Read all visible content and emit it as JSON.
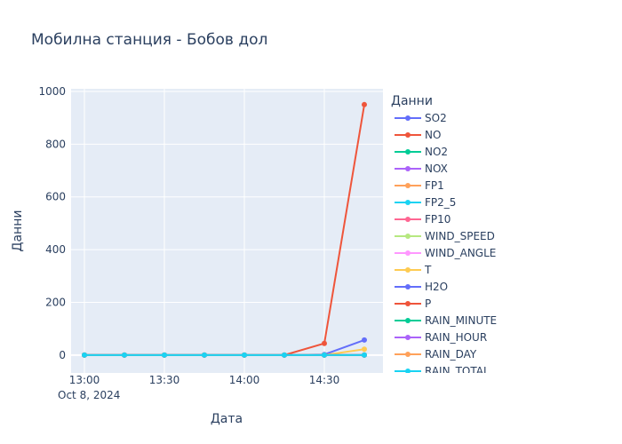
{
  "chart_data": {
    "type": "line",
    "title": "Мобилна станция - Бобов дол",
    "xlabel": "Дата",
    "ylabel": "Данни",
    "legend_title": "Данни",
    "legend_position": "right",
    "grid": true,
    "x_ticks": [
      "13:00",
      "13:30",
      "14:00",
      "14:30"
    ],
    "x_date_label": "Oct 8, 2024",
    "y_ticks": [
      0,
      200,
      400,
      600,
      800,
      1000
    ],
    "x_range": [
      "2024-10-08 12:55",
      "2024-10-08 14:52"
    ],
    "ylim": [
      -68,
      1010
    ],
    "x": [
      "13:00",
      "13:15",
      "13:30",
      "13:45",
      "14:00",
      "14:15",
      "14:30",
      "14:45"
    ],
    "series": [
      {
        "name": "SO2",
        "color": "#636efa",
        "values": [
          0,
          0,
          0,
          0,
          0,
          0,
          2,
          57
        ]
      },
      {
        "name": "NO",
        "color": "#EF553B",
        "values": [
          0,
          0,
          0,
          0,
          0,
          0,
          44,
          950
        ]
      },
      {
        "name": "NO2",
        "color": "#00cc96",
        "values": [
          0,
          0,
          0,
          0,
          0,
          0,
          0,
          0
        ]
      },
      {
        "name": "NOX",
        "color": "#ab63fa",
        "values": [
          0,
          0,
          0,
          0,
          0,
          0,
          0,
          0
        ]
      },
      {
        "name": "FP1",
        "color": "#FFA15A",
        "values": [
          0,
          0,
          0,
          0,
          0,
          0,
          0,
          0
        ]
      },
      {
        "name": "FP2_5",
        "color": "#19d3f3",
        "values": [
          0,
          0,
          0,
          0,
          0,
          0,
          0,
          0
        ]
      },
      {
        "name": "FP10",
        "color": "#FF6692",
        "values": [
          0,
          0,
          0,
          0,
          0,
          0,
          0,
          0
        ]
      },
      {
        "name": "WIND_SPEED",
        "color": "#B6E880",
        "values": [
          0,
          0,
          0,
          0,
          0,
          0,
          0,
          0
        ]
      },
      {
        "name": "WIND_ANGLE",
        "color": "#FF97FF",
        "values": [
          0,
          0,
          0,
          0,
          0,
          0,
          0,
          0
        ]
      },
      {
        "name": "T",
        "color": "#FECB52",
        "values": [
          0,
          0,
          0,
          0,
          0,
          0,
          0,
          22
        ]
      },
      {
        "name": "H2O",
        "color": "#636efa",
        "values": [
          0,
          0,
          0,
          0,
          0,
          0,
          0,
          0
        ]
      },
      {
        "name": "P",
        "color": "#EF553B",
        "values": [
          0,
          0,
          0,
          0,
          0,
          0,
          0,
          0
        ]
      },
      {
        "name": "RAIN_MINUTE",
        "color": "#00cc96",
        "values": [
          0,
          0,
          0,
          0,
          0,
          0,
          0,
          0
        ]
      },
      {
        "name": "RAIN_HOUR",
        "color": "#ab63fa",
        "values": [
          0,
          0,
          0,
          0,
          0,
          0,
          0,
          0
        ]
      },
      {
        "name": "RAIN_DAY",
        "color": "#FFA15A",
        "values": [
          0,
          0,
          0,
          0,
          0,
          0,
          0,
          0
        ]
      },
      {
        "name": "RAIN_TOTAL",
        "color": "#19d3f3",
        "values": [
          0,
          0,
          0,
          0,
          0,
          0,
          0,
          0
        ]
      }
    ]
  }
}
